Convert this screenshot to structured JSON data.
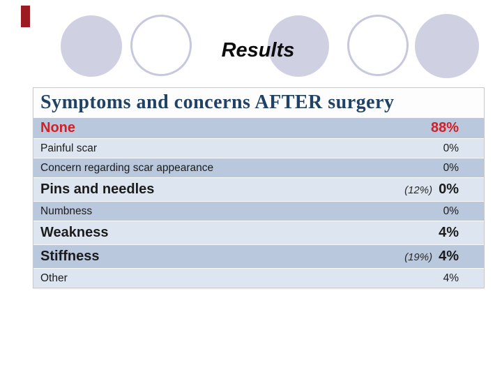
{
  "slide": {
    "title": "Results",
    "accent_bar_color": "#9b1b20"
  },
  "decor": {
    "circle_fill_color": "#cfd0e2",
    "circle_outline_color": "#c6c8dd",
    "circles": [
      {
        "style": "filled"
      },
      {
        "style": "outline"
      },
      {
        "style": "filled"
      },
      {
        "style": "outline"
      },
      {
        "style": "filled"
      }
    ]
  },
  "table": {
    "title": "Symptoms and concerns AFTER surgery",
    "title_color": "#1f4265",
    "highlight_red": "#d12027",
    "band_medium": "#b9c8dc",
    "band_light": "#dde6f0",
    "rows": [
      {
        "label": "None",
        "note": "",
        "value": "88%",
        "emphasis": "red",
        "band": "medium"
      },
      {
        "label": "Painful scar",
        "note": "",
        "value": "0%",
        "emphasis": "normal",
        "band": "light"
      },
      {
        "label": "Concern regarding scar appearance",
        "note": "",
        "value": "0%",
        "emphasis": "normal",
        "band": "medium"
      },
      {
        "label": "Pins and needles",
        "note": "(12%)",
        "value": "0%",
        "emphasis": "bold",
        "band": "light"
      },
      {
        "label": "Numbness",
        "note": "",
        "value": "0%",
        "emphasis": "normal",
        "band": "medium"
      },
      {
        "label": "Weakness",
        "note": "",
        "value": "4%",
        "emphasis": "bold",
        "band": "light"
      },
      {
        "label": "Stiffness",
        "note": "(19%)",
        "value": "4%",
        "emphasis": "bold",
        "band": "medium"
      },
      {
        "label": "Other",
        "note": "",
        "value": "4%",
        "emphasis": "normal",
        "band": "light"
      }
    ]
  }
}
